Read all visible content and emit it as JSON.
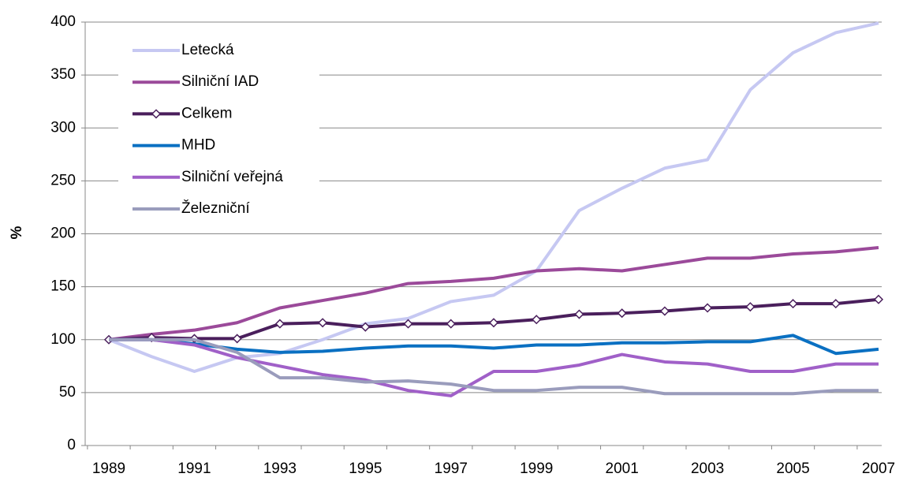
{
  "chart_data": {
    "type": "line",
    "categories": [
      "1989",
      null,
      "1991",
      null,
      "1993",
      null,
      "1995",
      null,
      "1997",
      null,
      "1999",
      null,
      "2001",
      null,
      "2003",
      null,
      "2005",
      null,
      "2007"
    ],
    "y_label": "%",
    "ylim": [
      0,
      400
    ],
    "yticks": [
      0,
      50,
      100,
      150,
      200,
      250,
      300,
      350,
      400
    ],
    "grid": true,
    "legend": "top-left",
    "series": [
      {
        "name": "Letecká",
        "color": "#c6c8f2",
        "values": [
          100,
          84,
          70,
          83,
          87,
          100,
          115,
          120,
          136,
          142,
          165,
          222,
          243,
          262,
          270,
          336,
          371,
          390,
          399
        ]
      },
      {
        "name": "Silniční IAD",
        "color": "#9b4a9a",
        "values": [
          100,
          105,
          109,
          116,
          130,
          137,
          144,
          153,
          155,
          158,
          165,
          167,
          165,
          171,
          177,
          177,
          181,
          183,
          187
        ]
      },
      {
        "name": "Celkem",
        "color": "#4a1f5c",
        "marker": "diamond",
        "values": [
          100,
          102,
          101,
          101,
          115,
          116,
          112,
          115,
          115,
          116,
          119,
          124,
          125,
          127,
          130,
          131,
          134,
          134,
          138
        ]
      },
      {
        "name": "MHD",
        "color": "#0a70c2",
        "values": [
          100,
          100,
          96,
          91,
          88,
          89,
          92,
          94,
          94,
          92,
          95,
          95,
          97,
          97,
          98,
          98,
          104,
          87,
          91
        ]
      },
      {
        "name": "Silniční veřejná",
        "color": "#a060c8",
        "values": [
          100,
          100,
          95,
          83,
          75,
          67,
          62,
          52,
          47,
          70,
          70,
          76,
          86,
          79,
          77,
          70,
          70,
          77,
          77
        ]
      },
      {
        "name": "Železniční",
        "color": "#9a9cbc",
        "values": [
          100,
          100,
          100,
          88,
          64,
          64,
          60,
          61,
          58,
          52,
          52,
          55,
          55,
          49,
          49,
          49,
          49,
          52,
          52
        ]
      }
    ]
  }
}
